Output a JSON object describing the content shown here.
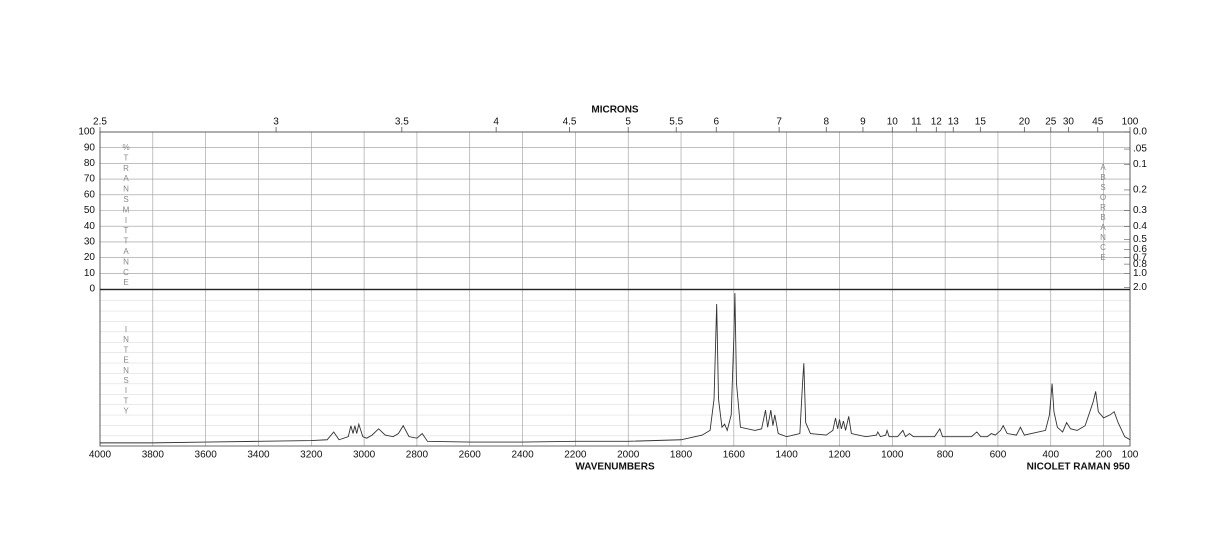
{
  "chart_data": {
    "type": "line",
    "x_label": "WAVENUMBERS",
    "x2_label": "MICRONS",
    "instrument": "NICOLET RAMAN 950",
    "y_label": "%TRANSMITTANCE",
    "y2_label": "ABSORBANCE",
    "intensity_label": "INTENSITY",
    "color": "#333333",
    "grid": true,
    "xlim": [
      4000,
      100
    ],
    "xticks": [
      4000,
      3800,
      3600,
      3400,
      3200,
      3000,
      2800,
      2600,
      2400,
      2200,
      2000,
      1800,
      1600,
      1400,
      1200,
      1000,
      800,
      600,
      400,
      200,
      100
    ],
    "x2ticks": [
      2.5,
      3,
      3.5,
      4,
      4.5,
      5,
      5.5,
      6,
      7,
      8,
      9,
      10,
      11,
      12,
      13,
      15,
      20,
      25,
      30,
      45,
      100
    ],
    "ylim": [
      0,
      100
    ],
    "yticks": [
      0,
      10,
      20,
      30,
      40,
      50,
      60,
      70,
      80,
      90,
      100
    ],
    "y2_scale": "absorbance",
    "y2ticks": [
      {
        "value": 0,
        "label": "0.0"
      },
      {
        "value": 0.05,
        "label": ".05"
      },
      0.1,
      0.2,
      0.3,
      0.4,
      0.5,
      0.6,
      0.7,
      0.8,
      {
        "value": 1,
        "label": "1.0"
      },
      {
        "value": 2,
        "label": "2.0"
      }
    ],
    "intensity_lim": [
      0,
      100
    ],
    "x": [
      4000,
      3800,
      3600,
      3400,
      3200,
      3140,
      3115,
      3095,
      3060,
      3050,
      3042,
      3035,
      3028,
      3020,
      3005,
      2990,
      2970,
      2945,
      2920,
      2890,
      2870,
      2852,
      2830,
      2800,
      2780,
      2760,
      2600,
      2400,
      2200,
      2000,
      1800,
      1720,
      1690,
      1675,
      1665,
      1658,
      1645,
      1635,
      1625,
      1610,
      1600,
      1596,
      1590,
      1575,
      1520,
      1495,
      1480,
      1472,
      1460,
      1452,
      1445,
      1432,
      1400,
      1350,
      1340,
      1335,
      1328,
      1310,
      1250,
      1225,
      1215,
      1207,
      1200,
      1193,
      1185,
      1177,
      1165,
      1155,
      1100,
      1060,
      1055,
      1045,
      1025,
      1020,
      1012,
      980,
      960,
      950,
      935,
      920,
      840,
      820,
      810,
      700,
      680,
      665,
      640,
      625,
      610,
      590,
      580,
      565,
      530,
      515,
      500,
      420,
      405,
      395,
      388,
      375,
      355,
      340,
      325,
      300,
      270,
      240,
      230,
      220,
      200,
      175,
      160,
      145,
      120,
      100
    ],
    "values": [
      2,
      2,
      2.5,
      3,
      3.5,
      4,
      9,
      4,
      6,
      13,
      8,
      13,
      8,
      14,
      6,
      5,
      7,
      11,
      7,
      6,
      8,
      13,
      6,
      5,
      8,
      3,
      2.5,
      2.5,
      3,
      3,
      4,
      7,
      10,
      30,
      91,
      30,
      12,
      14,
      10,
      20,
      70,
      98,
      40,
      12,
      10,
      11,
      23,
      12,
      23,
      13,
      20,
      8,
      6,
      8,
      40,
      53,
      15,
      8,
      7,
      10,
      18,
      11,
      17,
      11,
      16,
      10,
      19,
      8,
      6,
      7,
      9,
      6,
      7,
      10,
      6,
      6,
      10,
      6,
      8,
      6,
      6,
      11,
      6,
      6,
      9,
      6,
      6,
      8,
      7,
      10,
      13,
      8,
      7,
      12,
      7,
      10,
      20,
      40,
      22,
      12,
      9,
      15,
      11,
      10,
      13,
      28,
      35,
      22,
      18,
      20,
      22,
      15,
      6,
      4
    ]
  }
}
